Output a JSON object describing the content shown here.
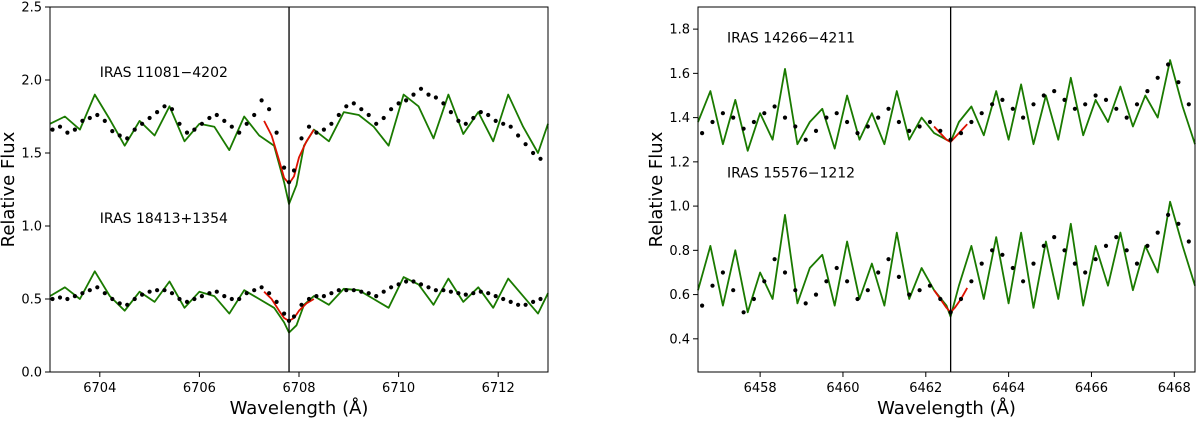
{
  "chart_data": [
    {
      "type": "line",
      "xlabel": "Wavelength (Å)",
      "ylabel": "Relative Flux",
      "xlim": [
        6703,
        6713
      ],
      "ylim": [
        0.0,
        2.5
      ],
      "xticks": [
        6704,
        6706,
        6708,
        6710,
        6712
      ],
      "yticks": [
        0.0,
        0.5,
        1.0,
        1.5,
        2.0,
        2.5
      ],
      "xtick_labels": [
        "6704",
        "6706",
        "6708",
        "6710",
        "6712"
      ],
      "ytick_labels": [
        "0.0",
        "0.5",
        "1.0",
        "1.5",
        "2.0",
        "2.5"
      ],
      "vline_x": 6707.8,
      "colors": {
        "synthetic": "#1a7a00",
        "fit": "#dd1100",
        "observed": "#000000",
        "vline": "#000000"
      },
      "annotations": [
        {
          "text": "IRAS 11081−4202",
          "x": 6704.0,
          "y": 2.02
        },
        {
          "text": "IRAS 18413+1354",
          "x": 6704.0,
          "y": 1.02
        }
      ],
      "series": [
        {
          "role": "synthetic-spectrum",
          "x": [
            6703.0,
            6703.3,
            6703.6,
            6703.9,
            6704.2,
            6704.5,
            6704.8,
            6705.1,
            6705.4,
            6705.7,
            6706.0,
            6706.3,
            6706.6,
            6706.9,
            6707.2,
            6707.5,
            6707.7,
            6707.8,
            6707.95,
            6708.1,
            6708.3,
            6708.6,
            6708.9,
            6709.2,
            6709.5,
            6709.8,
            6710.1,
            6710.4,
            6710.7,
            6711.0,
            6711.3,
            6711.6,
            6711.9,
            6712.2,
            6712.5,
            6712.8,
            6713.0
          ],
          "y": [
            1.7,
            1.75,
            1.66,
            1.9,
            1.73,
            1.55,
            1.72,
            1.62,
            1.82,
            1.58,
            1.7,
            1.68,
            1.52,
            1.75,
            1.62,
            1.55,
            1.3,
            1.15,
            1.28,
            1.55,
            1.66,
            1.58,
            1.78,
            1.76,
            1.68,
            1.55,
            1.9,
            1.82,
            1.6,
            1.9,
            1.63,
            1.78,
            1.58,
            1.9,
            1.68,
            1.5,
            1.7
          ]
        },
        {
          "role": "fit-spectrum",
          "x": [
            6707.3,
            6707.45,
            6707.6,
            6707.7,
            6707.8,
            6707.9,
            6708.0,
            6708.15,
            6708.3
          ],
          "y": [
            1.72,
            1.62,
            1.45,
            1.33,
            1.29,
            1.34,
            1.47,
            1.58,
            1.66
          ]
        },
        {
          "role": "observed-spectrum",
          "x": [
            6703.05,
            6703.2,
            6703.35,
            6703.5,
            6703.65,
            6703.8,
            6703.95,
            6704.1,
            6704.25,
            6704.4,
            6704.55,
            6704.7,
            6704.85,
            6705.0,
            6705.15,
            6705.3,
            6705.45,
            6705.6,
            6705.75,
            6705.9,
            6706.05,
            6706.2,
            6706.35,
            6706.5,
            6706.65,
            6706.8,
            6706.95,
            6707.1,
            6707.25,
            6707.4,
            6707.55,
            6707.7,
            6707.8,
            6707.9,
            6708.05,
            6708.2,
            6708.35,
            6708.5,
            6708.65,
            6708.8,
            6708.95,
            6709.1,
            6709.25,
            6709.4,
            6709.55,
            6709.7,
            6709.85,
            6710.0,
            6710.15,
            6710.3,
            6710.45,
            6710.6,
            6710.75,
            6710.9,
            6711.05,
            6711.2,
            6711.35,
            6711.5,
            6711.65,
            6711.8,
            6711.95,
            6712.1,
            6712.25,
            6712.4,
            6712.55,
            6712.7,
            6712.85
          ],
          "y": [
            1.66,
            1.68,
            1.64,
            1.66,
            1.72,
            1.74,
            1.76,
            1.72,
            1.65,
            1.62,
            1.6,
            1.66,
            1.7,
            1.74,
            1.78,
            1.82,
            1.8,
            1.7,
            1.64,
            1.66,
            1.7,
            1.74,
            1.76,
            1.72,
            1.68,
            1.64,
            1.7,
            1.76,
            1.86,
            1.8,
            1.64,
            1.4,
            1.3,
            1.38,
            1.6,
            1.68,
            1.64,
            1.66,
            1.7,
            1.76,
            1.82,
            1.84,
            1.8,
            1.76,
            1.7,
            1.74,
            1.8,
            1.84,
            1.86,
            1.9,
            1.94,
            1.9,
            1.88,
            1.84,
            1.78,
            1.72,
            1.7,
            1.74,
            1.78,
            1.76,
            1.72,
            1.7,
            1.68,
            1.62,
            1.56,
            1.5,
            1.46
          ]
        },
        {
          "role": "synthetic-spectrum",
          "x": [
            6703.0,
            6703.3,
            6703.6,
            6703.9,
            6704.2,
            6704.5,
            6704.8,
            6705.1,
            6705.4,
            6705.7,
            6706.0,
            6706.3,
            6706.6,
            6706.9,
            6707.2,
            6707.5,
            6707.7,
            6707.8,
            6707.95,
            6708.1,
            6708.3,
            6708.6,
            6708.9,
            6709.2,
            6709.5,
            6709.8,
            6710.1,
            6710.4,
            6710.7,
            6711.0,
            6711.3,
            6711.6,
            6711.9,
            6712.2,
            6712.5,
            6712.8,
            6713.0
          ],
          "y": [
            0.52,
            0.58,
            0.5,
            0.69,
            0.52,
            0.42,
            0.55,
            0.48,
            0.62,
            0.44,
            0.55,
            0.52,
            0.4,
            0.56,
            0.5,
            0.44,
            0.34,
            0.27,
            0.32,
            0.46,
            0.52,
            0.46,
            0.57,
            0.56,
            0.5,
            0.44,
            0.65,
            0.6,
            0.46,
            0.64,
            0.48,
            0.58,
            0.44,
            0.64,
            0.52,
            0.4,
            0.54
          ]
        },
        {
          "role": "fit-spectrum",
          "x": [
            6707.3,
            6707.45,
            6707.6,
            6707.7,
            6707.8,
            6707.9,
            6708.0,
            6708.15,
            6708.3
          ],
          "y": [
            0.55,
            0.5,
            0.42,
            0.37,
            0.35,
            0.37,
            0.42,
            0.47,
            0.5
          ]
        },
        {
          "role": "observed-spectrum",
          "x": [
            6703.05,
            6703.2,
            6703.35,
            6703.5,
            6703.65,
            6703.8,
            6703.95,
            6704.1,
            6704.25,
            6704.4,
            6704.55,
            6704.7,
            6704.85,
            6705.0,
            6705.15,
            6705.3,
            6705.45,
            6705.6,
            6705.75,
            6705.9,
            6706.05,
            6706.2,
            6706.35,
            6706.5,
            6706.65,
            6706.8,
            6706.95,
            6707.1,
            6707.25,
            6707.4,
            6707.55,
            6707.7,
            6707.8,
            6707.9,
            6708.05,
            6708.2,
            6708.35,
            6708.5,
            6708.65,
            6708.8,
            6708.95,
            6709.1,
            6709.25,
            6709.4,
            6709.55,
            6709.7,
            6709.85,
            6710.0,
            6710.15,
            6710.3,
            6710.45,
            6710.6,
            6710.75,
            6710.9,
            6711.05,
            6711.2,
            6711.35,
            6711.5,
            6711.65,
            6711.8,
            6711.95,
            6712.1,
            6712.25,
            6712.4,
            6712.55,
            6712.7,
            6712.85
          ],
          "y": [
            0.5,
            0.51,
            0.5,
            0.52,
            0.54,
            0.56,
            0.58,
            0.54,
            0.5,
            0.47,
            0.46,
            0.5,
            0.53,
            0.55,
            0.56,
            0.56,
            0.54,
            0.5,
            0.48,
            0.5,
            0.52,
            0.54,
            0.55,
            0.52,
            0.5,
            0.5,
            0.54,
            0.56,
            0.58,
            0.54,
            0.48,
            0.4,
            0.35,
            0.38,
            0.46,
            0.5,
            0.52,
            0.52,
            0.54,
            0.56,
            0.56,
            0.56,
            0.55,
            0.54,
            0.52,
            0.55,
            0.58,
            0.6,
            0.62,
            0.62,
            0.6,
            0.58,
            0.56,
            0.56,
            0.55,
            0.54,
            0.53,
            0.54,
            0.55,
            0.54,
            0.52,
            0.5,
            0.48,
            0.46,
            0.46,
            0.48,
            0.5
          ]
        }
      ]
    },
    {
      "type": "line",
      "xlabel": "Wavelength (Å)",
      "ylabel": "Relative Flux",
      "xlim": [
        6456.5,
        6468.5
      ],
      "ylim": [
        0.25,
        1.9
      ],
      "xticks": [
        6458,
        6460,
        6462,
        6464,
        6466,
        6468
      ],
      "yticks": [
        0.4,
        0.6,
        0.8,
        1.0,
        1.2,
        1.4,
        1.6,
        1.8
      ],
      "xtick_labels": [
        "6458",
        "6460",
        "6462",
        "6464",
        "6466",
        "6468"
      ],
      "ytick_labels": [
        "0.4",
        "0.6",
        "0.8",
        "1.0",
        "1.2",
        "1.4",
        "1.6",
        "1.8"
      ],
      "vline_x": 6462.6,
      "colors": {
        "synthetic": "#1a7a00",
        "fit": "#dd1100",
        "observed": "#000000",
        "vline": "#000000"
      },
      "annotations": [
        {
          "text": "IRAS 14266−4211",
          "x": 6457.2,
          "y": 1.74
        },
        {
          "text": "IRAS 15576−1212",
          "x": 6457.2,
          "y": 1.13
        }
      ],
      "series": [
        {
          "role": "synthetic-spectrum",
          "x": [
            6456.5,
            6456.8,
            6457.1,
            6457.4,
            6457.7,
            6458.0,
            6458.3,
            6458.6,
            6458.9,
            6459.2,
            6459.5,
            6459.8,
            6460.1,
            6460.4,
            6460.7,
            6461.0,
            6461.3,
            6461.6,
            6461.9,
            6462.2,
            6462.5,
            6462.6,
            6462.8,
            6463.1,
            6463.4,
            6463.7,
            6464.0,
            6464.3,
            6464.6,
            6464.9,
            6465.2,
            6465.5,
            6465.8,
            6466.1,
            6466.4,
            6466.7,
            6467.0,
            6467.3,
            6467.6,
            6467.9,
            6468.2,
            6468.5
          ],
          "y": [
            1.38,
            1.52,
            1.28,
            1.48,
            1.25,
            1.42,
            1.3,
            1.62,
            1.28,
            1.38,
            1.44,
            1.26,
            1.5,
            1.3,
            1.42,
            1.28,
            1.52,
            1.3,
            1.4,
            1.33,
            1.3,
            1.29,
            1.38,
            1.45,
            1.32,
            1.52,
            1.3,
            1.55,
            1.28,
            1.5,
            1.3,
            1.58,
            1.32,
            1.48,
            1.38,
            1.54,
            1.36,
            1.5,
            1.4,
            1.66,
            1.45,
            1.28
          ]
        },
        {
          "role": "fit-spectrum",
          "x": [
            6462.2,
            6462.35,
            6462.5,
            6462.6,
            6462.7,
            6462.85,
            6463.0
          ],
          "y": [
            1.36,
            1.33,
            1.3,
            1.29,
            1.31,
            1.34,
            1.37
          ]
        },
        {
          "role": "observed-spectrum",
          "x": [
            6456.6,
            6456.85,
            6457.1,
            6457.35,
            6457.6,
            6457.85,
            6458.1,
            6458.35,
            6458.6,
            6458.85,
            6459.1,
            6459.35,
            6459.6,
            6459.85,
            6460.1,
            6460.35,
            6460.6,
            6460.85,
            6461.1,
            6461.35,
            6461.6,
            6461.85,
            6462.1,
            6462.35,
            6462.6,
            6462.85,
            6463.1,
            6463.35,
            6463.6,
            6463.85,
            6464.1,
            6464.35,
            6464.6,
            6464.85,
            6465.1,
            6465.35,
            6465.6,
            6465.85,
            6466.1,
            6466.35,
            6466.6,
            6466.85,
            6467.1,
            6467.35,
            6467.6,
            6467.85,
            6468.1,
            6468.35
          ],
          "y": [
            1.33,
            1.38,
            1.42,
            1.4,
            1.35,
            1.38,
            1.42,
            1.45,
            1.4,
            1.36,
            1.3,
            1.34,
            1.4,
            1.42,
            1.38,
            1.33,
            1.36,
            1.4,
            1.44,
            1.38,
            1.34,
            1.36,
            1.38,
            1.34,
            1.3,
            1.33,
            1.38,
            1.42,
            1.46,
            1.48,
            1.44,
            1.4,
            1.46,
            1.5,
            1.52,
            1.48,
            1.44,
            1.46,
            1.5,
            1.48,
            1.44,
            1.4,
            1.46,
            1.52,
            1.58,
            1.64,
            1.56,
            1.46
          ]
        },
        {
          "role": "synthetic-spectrum",
          "x": [
            6456.5,
            6456.8,
            6457.1,
            6457.4,
            6457.7,
            6458.0,
            6458.3,
            6458.6,
            6458.9,
            6459.2,
            6459.5,
            6459.8,
            6460.1,
            6460.4,
            6460.7,
            6461.0,
            6461.3,
            6461.6,
            6461.9,
            6462.2,
            6462.5,
            6462.6,
            6462.8,
            6463.1,
            6463.4,
            6463.7,
            6464.0,
            6464.3,
            6464.6,
            6464.9,
            6465.2,
            6465.5,
            6465.8,
            6466.1,
            6466.4,
            6466.7,
            6467.0,
            6467.3,
            6467.6,
            6467.9,
            6468.2,
            6468.5
          ],
          "y": [
            0.62,
            0.82,
            0.55,
            0.8,
            0.52,
            0.7,
            0.58,
            0.96,
            0.56,
            0.72,
            0.78,
            0.55,
            0.84,
            0.58,
            0.74,
            0.55,
            0.88,
            0.58,
            0.72,
            0.62,
            0.55,
            0.5,
            0.64,
            0.82,
            0.58,
            0.86,
            0.56,
            0.88,
            0.54,
            0.84,
            0.58,
            0.92,
            0.55,
            0.82,
            0.64,
            0.88,
            0.62,
            0.82,
            0.7,
            1.02,
            0.82,
            0.64
          ]
        },
        {
          "role": "fit-spectrum",
          "x": [
            6462.2,
            6462.35,
            6462.5,
            6462.6,
            6462.7,
            6462.85,
            6463.0
          ],
          "y": [
            0.62,
            0.58,
            0.54,
            0.52,
            0.54,
            0.58,
            0.63
          ]
        },
        {
          "role": "observed-spectrum",
          "x": [
            6456.6,
            6456.85,
            6457.1,
            6457.35,
            6457.6,
            6457.85,
            6458.1,
            6458.35,
            6458.6,
            6458.85,
            6459.1,
            6459.35,
            6459.6,
            6459.85,
            6460.1,
            6460.35,
            6460.6,
            6460.85,
            6461.1,
            6461.35,
            6461.6,
            6461.85,
            6462.1,
            6462.35,
            6462.6,
            6462.85,
            6463.1,
            6463.35,
            6463.6,
            6463.85,
            6464.1,
            6464.35,
            6464.6,
            6464.85,
            6465.1,
            6465.35,
            6465.6,
            6465.85,
            6466.1,
            6466.35,
            6466.6,
            6466.85,
            6467.1,
            6467.35,
            6467.6,
            6467.85,
            6468.1,
            6468.35
          ],
          "y": [
            0.55,
            0.64,
            0.7,
            0.62,
            0.52,
            0.58,
            0.66,
            0.76,
            0.7,
            0.62,
            0.56,
            0.6,
            0.66,
            0.72,
            0.66,
            0.58,
            0.62,
            0.7,
            0.76,
            0.68,
            0.6,
            0.62,
            0.64,
            0.58,
            0.52,
            0.58,
            0.66,
            0.74,
            0.8,
            0.78,
            0.72,
            0.66,
            0.74,
            0.82,
            0.86,
            0.8,
            0.74,
            0.7,
            0.76,
            0.82,
            0.86,
            0.8,
            0.74,
            0.82,
            0.88,
            0.96,
            0.92,
            0.84
          ]
        }
      ]
    }
  ]
}
